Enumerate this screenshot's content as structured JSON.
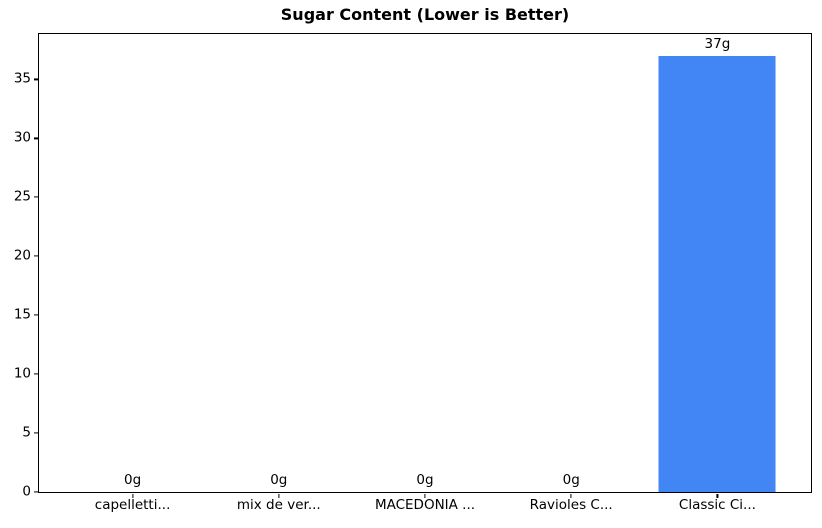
{
  "chart_data": {
    "type": "bar",
    "title": "Sugar Content (Lower is Better)",
    "categories": [
      "capelletti...",
      "mix de ver...",
      "MACEDONIA ...",
      "Ravioles C...",
      "Classic Ci..."
    ],
    "values": [
      0,
      0,
      0,
      0,
      37
    ],
    "bar_labels": [
      "0g",
      "0g",
      "0g",
      "0g",
      "37g"
    ],
    "xlabel": "",
    "ylabel": "",
    "yticks": [
      0,
      5,
      10,
      15,
      20,
      25,
      30,
      35
    ],
    "ylim": [
      0,
      38.85
    ],
    "grid": false,
    "legend": "none",
    "bar_color": "#4285F4",
    "text_color": "#000000",
    "spine_color": "#000000",
    "background_color": "#ffffff"
  }
}
